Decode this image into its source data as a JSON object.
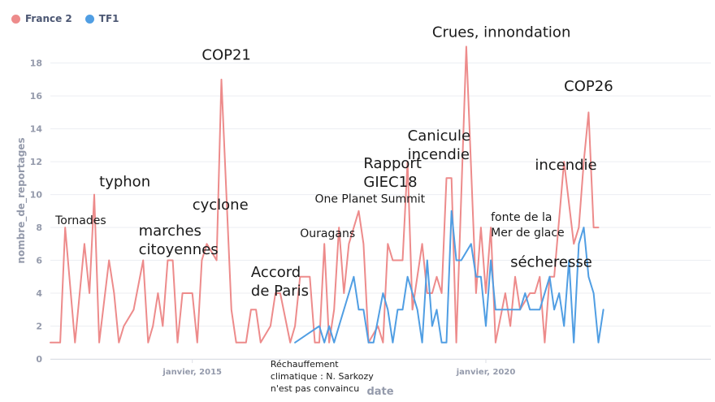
{
  "chart_data": {
    "type": "line",
    "xlabel": "date",
    "ylabel": "nombre_de_reportages",
    "ylim": [
      0,
      19
    ],
    "yticks": [
      0,
      2,
      4,
      6,
      8,
      10,
      12,
      14,
      16,
      18
    ],
    "xlim": [
      "2012-08-01",
      "2023-11-01"
    ],
    "xticks": [
      {
        "date": "2015-01-01",
        "label": "janvier, 2015"
      },
      {
        "date": "2020-01-01",
        "label": "janvier, 2020"
      }
    ],
    "legend_position": "top-left",
    "series": [
      {
        "name": "France 2",
        "color": "#ed8b8b",
        "points": [
          [
            "2012-08-01",
            1
          ],
          [
            "2012-10-01",
            1
          ],
          [
            "2012-11-01",
            8
          ],
          [
            "2013-01-01",
            1
          ],
          [
            "2013-03-01",
            7
          ],
          [
            "2013-04-01",
            4
          ],
          [
            "2013-05-01",
            10
          ],
          [
            "2013-06-01",
            1
          ],
          [
            "2013-08-01",
            6
          ],
          [
            "2013-09-01",
            4
          ],
          [
            "2013-10-01",
            1
          ],
          [
            "2013-11-01",
            2
          ],
          [
            "2014-01-01",
            3
          ],
          [
            "2014-03-01",
            6
          ],
          [
            "2014-04-01",
            1
          ],
          [
            "2014-05-01",
            2
          ],
          [
            "2014-06-01",
            4
          ],
          [
            "2014-07-01",
            2
          ],
          [
            "2014-08-01",
            6
          ],
          [
            "2014-09-01",
            6
          ],
          [
            "2014-10-01",
            1
          ],
          [
            "2014-11-01",
            4
          ],
          [
            "2015-01-01",
            4
          ],
          [
            "2015-02-01",
            1
          ],
          [
            "2015-03-01",
            6
          ],
          [
            "2015-04-01",
            7
          ],
          [
            "2015-06-01",
            6
          ],
          [
            "2015-07-01",
            17
          ],
          [
            "2015-09-01",
            3
          ],
          [
            "2015-10-01",
            1
          ],
          [
            "2015-12-01",
            1
          ],
          [
            "2016-01-01",
            3
          ],
          [
            "2016-02-01",
            3
          ],
          [
            "2016-03-01",
            1
          ],
          [
            "2016-05-01",
            2
          ],
          [
            "2016-06-01",
            4
          ],
          [
            "2016-07-01",
            4
          ],
          [
            "2016-09-01",
            1
          ],
          [
            "2016-10-01",
            2
          ],
          [
            "2016-11-01",
            5
          ],
          [
            "2017-01-01",
            5
          ],
          [
            "2017-02-01",
            1
          ],
          [
            "2017-03-01",
            1
          ],
          [
            "2017-04-01",
            7
          ],
          [
            "2017-05-01",
            1
          ],
          [
            "2017-06-01",
            3
          ],
          [
            "2017-07-01",
            8
          ],
          [
            "2017-08-01",
            4
          ],
          [
            "2017-09-01",
            7
          ],
          [
            "2017-11-01",
            9
          ],
          [
            "2017-12-01",
            7
          ],
          [
            "2018-01-01",
            1
          ],
          [
            "2018-03-01",
            2
          ],
          [
            "2018-04-01",
            1
          ],
          [
            "2018-05-01",
            7
          ],
          [
            "2018-06-01",
            6
          ],
          [
            "2018-08-01",
            6
          ],
          [
            "2018-09-01",
            12
          ],
          [
            "2018-10-01",
            3
          ],
          [
            "2018-12-01",
            7
          ],
          [
            "2019-01-01",
            4
          ],
          [
            "2019-02-01",
            4
          ],
          [
            "2019-03-01",
            5
          ],
          [
            "2019-04-01",
            4
          ],
          [
            "2019-05-01",
            11
          ],
          [
            "2019-06-01",
            11
          ],
          [
            "2019-07-01",
            1
          ],
          [
            "2019-09-01",
            19
          ],
          [
            "2019-11-01",
            4
          ],
          [
            "2019-12-01",
            8
          ],
          [
            "2020-01-01",
            4
          ],
          [
            "2020-02-01",
            8
          ],
          [
            "2020-03-01",
            1
          ],
          [
            "2020-05-01",
            4
          ],
          [
            "2020-06-01",
            2
          ],
          [
            "2020-07-01",
            5
          ],
          [
            "2020-08-01",
            3
          ],
          [
            "2020-10-01",
            4
          ],
          [
            "2020-11-01",
            4
          ],
          [
            "2020-12-01",
            5
          ],
          [
            "2021-01-01",
            1
          ],
          [
            "2021-02-01",
            5
          ],
          [
            "2021-03-01",
            5
          ],
          [
            "2021-05-01",
            12
          ],
          [
            "2021-07-01",
            7
          ],
          [
            "2021-08-01",
            8
          ],
          [
            "2021-09-01",
            12
          ],
          [
            "2021-10-01",
            15
          ],
          [
            "2021-11-01",
            8
          ],
          [
            "2021-12-01",
            8
          ]
        ]
      },
      {
        "name": "TF1",
        "color": "#509ee3",
        "points": [
          [
            "2016-10-01",
            1
          ],
          [
            "2017-03-01",
            2
          ],
          [
            "2017-04-01",
            1
          ],
          [
            "2017-05-01",
            2
          ],
          [
            "2017-06-01",
            1
          ],
          [
            "2017-07-01",
            2
          ],
          [
            "2017-09-01",
            4
          ],
          [
            "2017-10-01",
            5
          ],
          [
            "2017-11-01",
            3
          ],
          [
            "2017-12-01",
            3
          ],
          [
            "2018-01-01",
            1
          ],
          [
            "2018-02-01",
            1
          ],
          [
            "2018-04-01",
            4
          ],
          [
            "2018-05-01",
            3
          ],
          [
            "2018-06-01",
            1
          ],
          [
            "2018-07-01",
            3
          ],
          [
            "2018-08-01",
            3
          ],
          [
            "2018-09-01",
            5
          ],
          [
            "2018-11-01",
            3
          ],
          [
            "2018-12-01",
            1
          ],
          [
            "2019-01-01",
            6
          ],
          [
            "2019-02-01",
            2
          ],
          [
            "2019-03-01",
            3
          ],
          [
            "2019-04-01",
            1
          ],
          [
            "2019-05-01",
            1
          ],
          [
            "2019-06-01",
            9
          ],
          [
            "2019-07-01",
            6
          ],
          [
            "2019-08-01",
            6
          ],
          [
            "2019-10-01",
            7
          ],
          [
            "2019-11-01",
            5
          ],
          [
            "2019-12-01",
            5
          ],
          [
            "2020-01-01",
            2
          ],
          [
            "2020-02-01",
            6
          ],
          [
            "2020-03-01",
            3
          ],
          [
            "2020-05-01",
            3
          ],
          [
            "2020-06-01",
            3
          ],
          [
            "2020-08-01",
            3
          ],
          [
            "2020-09-01",
            4
          ],
          [
            "2020-10-01",
            3
          ],
          [
            "2020-11-01",
            3
          ],
          [
            "2020-12-01",
            3
          ],
          [
            "2021-02-01",
            5
          ],
          [
            "2021-03-01",
            3
          ],
          [
            "2021-04-01",
            4
          ],
          [
            "2021-05-01",
            2
          ],
          [
            "2021-06-01",
            6
          ],
          [
            "2021-07-01",
            1
          ],
          [
            "2021-08-01",
            7
          ],
          [
            "2021-09-01",
            8
          ],
          [
            "2021-10-01",
            5
          ],
          [
            "2021-11-01",
            4
          ],
          [
            "2021-12-01",
            1
          ],
          [
            "2022-01-01",
            3
          ]
        ]
      }
    ],
    "annotations": [
      {
        "lines": [
          "Tornades"
        ],
        "date": "2012-09-01",
        "y": 8.2,
        "size": "medium"
      },
      {
        "lines": [
          "typhon"
        ],
        "date": "2013-06-01",
        "y": 10.5,
        "size": "large"
      },
      {
        "lines": [
          "marches",
          "citoyennes"
        ],
        "date": "2014-02-01",
        "y": 7.5,
        "size": "large"
      },
      {
        "lines": [
          "cyclone"
        ],
        "date": "2015-01-01",
        "y": 9.1,
        "size": "large"
      },
      {
        "lines": [
          "COP21"
        ],
        "date": "2015-03-01",
        "y": 18.2,
        "size": "large"
      },
      {
        "lines": [
          "Accord",
          "de Paris"
        ],
        "date": "2016-01-01",
        "y": 5.0,
        "size": "large"
      },
      {
        "lines": [
          "Réchauffement",
          "climatique : N. Sarkozy",
          "n'est pas convaincu"
        ],
        "date": "2016-05-01",
        "y": -0.5,
        "size": "small"
      },
      {
        "lines": [
          "Ouragans"
        ],
        "date": "2016-11-01",
        "y": 7.4,
        "size": "medium"
      },
      {
        "lines": [
          "One Planet Summit"
        ],
        "date": "2017-02-01",
        "y": 9.5,
        "size": "medium"
      },
      {
        "lines": [
          "Rapport",
          "GIEC18"
        ],
        "date": "2017-12-01",
        "y": 11.6,
        "size": "large"
      },
      {
        "lines": [
          "Canicule",
          "incendie"
        ],
        "date": "2018-09-01",
        "y": 13.3,
        "size": "large"
      },
      {
        "lines": [
          "Crues, innondation"
        ],
        "date": "2019-02-01",
        "y": 19.6,
        "size": "large"
      },
      {
        "lines": [
          "fonte de la",
          "Mer de glace"
        ],
        "date": "2020-02-01",
        "y": 8.4,
        "size": "medium"
      },
      {
        "lines": [
          "sécheresse"
        ],
        "date": "2020-06-01",
        "y": 5.6,
        "size": "large"
      },
      {
        "lines": [
          "incendie"
        ],
        "date": "2020-11-01",
        "y": 11.5,
        "size": "large"
      },
      {
        "lines": [
          "COP26"
        ],
        "date": "2021-05-01",
        "y": 16.3,
        "size": "large"
      }
    ]
  }
}
